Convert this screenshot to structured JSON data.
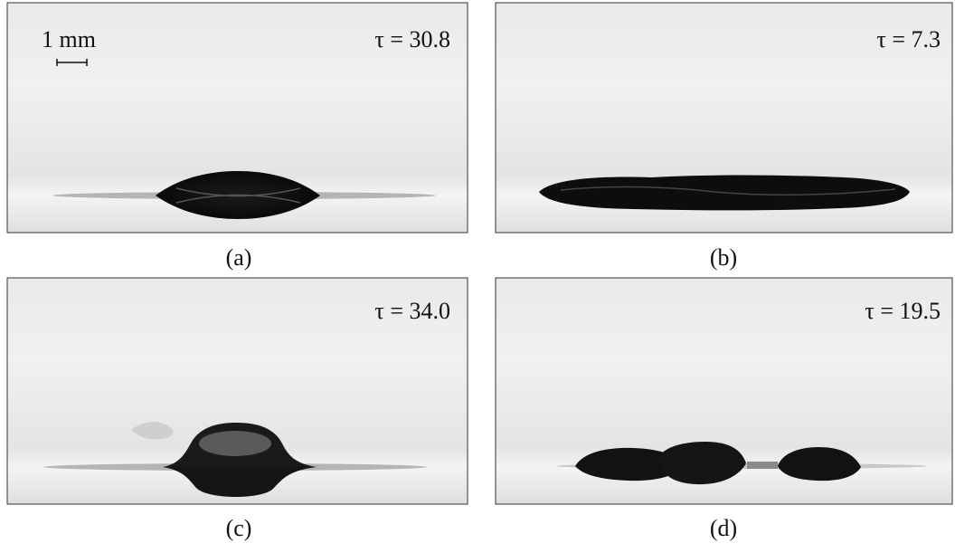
{
  "scale_bar": "1 mm",
  "panels": [
    {
      "tau": "τ = 30.8",
      "label": "(a)"
    },
    {
      "tau": "τ = 7.3",
      "label": "(b)"
    },
    {
      "tau": "τ = 34.0",
      "label": "(c)"
    },
    {
      "tau": "τ = 19.5",
      "label": "(d)"
    }
  ]
}
